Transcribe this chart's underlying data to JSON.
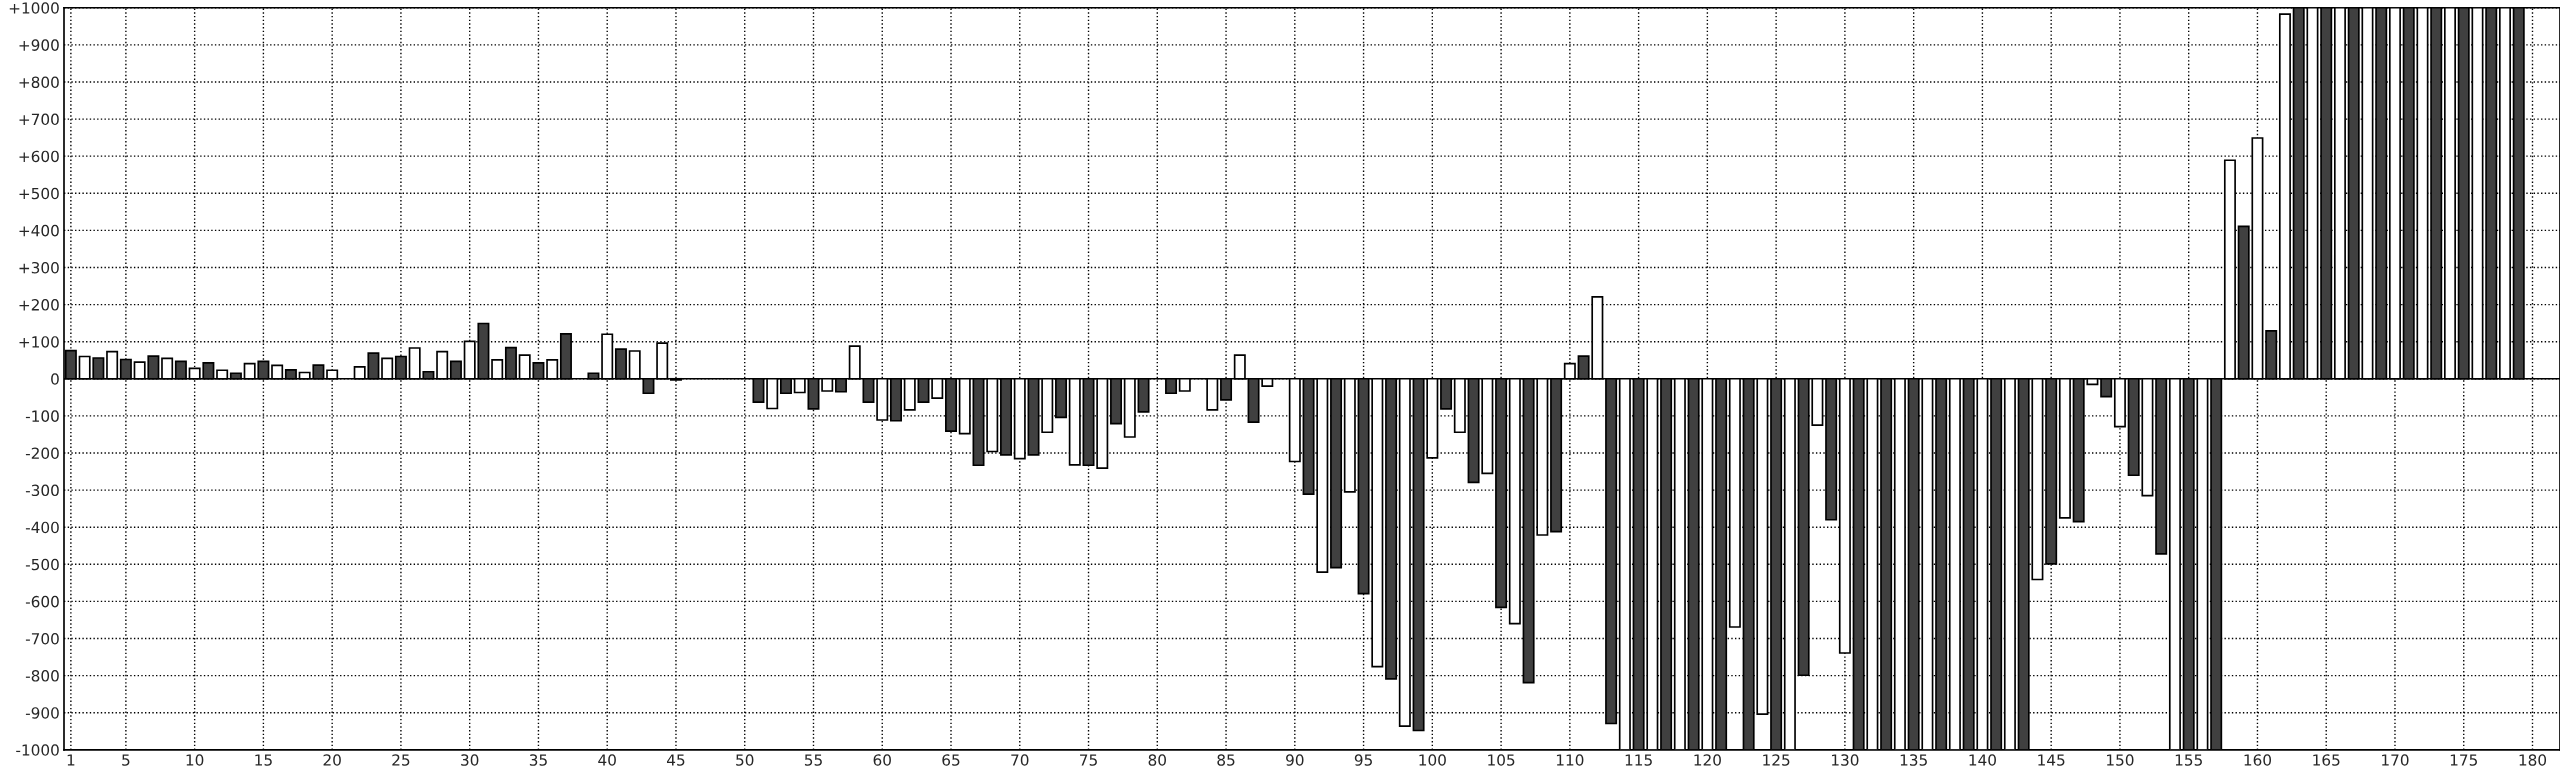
{
  "chart_data": {
    "type": "bar",
    "x": [
      1,
      2,
      3,
      4,
      5,
      6,
      7,
      8,
      9,
      10,
      11,
      12,
      13,
      14,
      15,
      16,
      17,
      18,
      19,
      20,
      21,
      22,
      23,
      24,
      25,
      26,
      27,
      28,
      29,
      30,
      31,
      32,
      33,
      34,
      35,
      36,
      37,
      38,
      39,
      40,
      41,
      42,
      43,
      44,
      45,
      46,
      47,
      48,
      49,
      50,
      51,
      52,
      53,
      54,
      55,
      56,
      57,
      58,
      59,
      60,
      61,
      62,
      63,
      64,
      65,
      66,
      67,
      68,
      69,
      70,
      71,
      72,
      73,
      74,
      75,
      76,
      77,
      78,
      79,
      80,
      81,
      82,
      83,
      84,
      85,
      86,
      87,
      88,
      89,
      90,
      91,
      92,
      93,
      94,
      95,
      96,
      97,
      98,
      99,
      100,
      101,
      102,
      103,
      104,
      105,
      106,
      107,
      108,
      109,
      110,
      111,
      112,
      113,
      114,
      115,
      116,
      117,
      118,
      119,
      120,
      121,
      122,
      123,
      124,
      125,
      126,
      127,
      128,
      129,
      130,
      131,
      132,
      133,
      134,
      135,
      136,
      137,
      138,
      139,
      140,
      141,
      142,
      143,
      144,
      145,
      146,
      147,
      148,
      149,
      150,
      151,
      152,
      153,
      154,
      155,
      156,
      157,
      158,
      159,
      160,
      161,
      162,
      163,
      164,
      165,
      166,
      167,
      168,
      169,
      170,
      171,
      172,
      173,
      174,
      175,
      176,
      177,
      178,
      179,
      180
    ],
    "values": [
      76,
      60,
      56,
      73,
      52,
      45,
      61,
      55,
      47,
      28,
      43,
      23,
      15,
      41,
      47,
      36,
      24,
      17,
      37,
      23,
      0,
      32,
      69,
      55,
      60,
      83,
      19,
      73,
      47,
      101,
      149,
      51,
      84,
      64,
      43,
      51,
      121,
      0,
      15,
      120,
      80,
      75,
      -39,
      96,
      -3,
      0,
      0,
      0,
      0,
      0,
      -63,
      -80,
      -39,
      -37,
      -81,
      -33,
      -35,
      88,
      -63,
      -111,
      -113,
      -84,
      -63,
      -52,
      -141,
      -148,
      -233,
      -196,
      -205,
      -215,
      -205,
      -144,
      -104,
      -232,
      -233,
      -241,
      -121,
      -157,
      -89,
      0,
      -39,
      -33,
      0,
      -84,
      -57,
      64,
      -117,
      -20,
      0,
      -223,
      -311,
      -521,
      -509,
      -305,
      -579,
      -776,
      -809,
      -936,
      -948,
      -213,
      -81,
      -144,
      -279,
      -255,
      -616,
      -660,
      -819,
      -421,
      -412,
      41,
      61,
      221,
      -929,
      -1000,
      -1000,
      -1000,
      -1000,
      -1000,
      -1000,
      -1000,
      -1000,
      -669,
      -1000,
      -904,
      -1000,
      -1000,
      -799,
      -125,
      -380,
      -739,
      -1000,
      -1000,
      -1000,
      -1000,
      -1000,
      -1000,
      -1000,
      -1000,
      -1000,
      -1000,
      -1000,
      -1000,
      -1000,
      -541,
      -499,
      -375,
      -385,
      -15,
      -48,
      -129,
      -260,
      -315,
      -472,
      -1000,
      -1000,
      -1000,
      -1000,
      589,
      411,
      649,
      129,
      983,
      1000,
      1000,
      1000,
      1000,
      1000,
      1000,
      1000,
      1000,
      1000,
      1000,
      1000,
      1000,
      1000,
      1000,
      1000,
      1000,
      1000,
      0
    ],
    "colors": [
      "#404040",
      "#ffffff",
      "#404040",
      "#ffffff",
      "#404040",
      "#ffffff",
      "#404040",
      "#ffffff",
      "#404040",
      "#ffffff",
      "#404040",
      "#ffffff",
      "#404040",
      "#ffffff",
      "#404040",
      "#ffffff",
      "#404040",
      "#ffffff",
      "#404040",
      "#ffffff",
      "#404040",
      "#ffffff",
      "#404040",
      "#ffffff",
      "#404040",
      "#ffffff",
      "#404040",
      "#ffffff",
      "#404040",
      "#ffffff",
      "#404040",
      "#ffffff",
      "#404040",
      "#ffffff",
      "#404040",
      "#ffffff",
      "#404040",
      "#ffffff",
      "#404040",
      "#ffffff",
      "#404040",
      "#ffffff",
      "#404040",
      "#ffffff",
      "#404040",
      "#ffffff",
      "#404040",
      "#ffffff",
      "#404040",
      "#ffffff",
      "#404040",
      "#ffffff",
      "#404040",
      "#ffffff",
      "#404040",
      "#ffffff",
      "#404040",
      "#ffffff",
      "#404040",
      "#ffffff",
      "#404040",
      "#ffffff",
      "#404040",
      "#ffffff",
      "#404040",
      "#ffffff",
      "#404040",
      "#ffffff",
      "#404040",
      "#ffffff",
      "#404040",
      "#ffffff",
      "#404040",
      "#ffffff",
      "#404040",
      "#ffffff",
      "#404040",
      "#ffffff",
      "#404040",
      "#ffffff",
      "#404040",
      "#ffffff",
      "#404040",
      "#ffffff",
      "#404040",
      "#ffffff",
      "#404040",
      "#ffffff",
      "#404040",
      "#ffffff",
      "#404040",
      "#ffffff",
      "#404040",
      "#ffffff",
      "#404040",
      "#ffffff",
      "#404040",
      "#ffffff",
      "#404040",
      "#ffffff",
      "#404040",
      "#ffffff",
      "#404040",
      "#ffffff",
      "#404040",
      "#ffffff",
      "#404040",
      "#ffffff",
      "#404040",
      "#ffffff",
      "#404040",
      "#ffffff",
      "#404040",
      "#ffffff",
      "#404040",
      "#ffffff",
      "#404040",
      "#ffffff",
      "#404040",
      "#ffffff",
      "#404040",
      "#ffffff",
      "#404040",
      "#ffffff",
      "#404040",
      "#ffffff",
      "#404040",
      "#ffffff",
      "#404040",
      "#ffffff",
      "#404040",
      "#ffffff",
      "#404040",
      "#ffffff",
      "#404040",
      "#ffffff",
      "#404040",
      "#ffffff",
      "#404040",
      "#ffffff",
      "#404040",
      "#ffffff",
      "#404040",
      "#ffffff",
      "#404040",
      "#ffffff",
      "#404040",
      "#ffffff",
      "#404040",
      "#ffffff",
      "#404040",
      "#ffffff",
      "#404040",
      "#ffffff",
      "#404040",
      "#ffffff",
      "#404040",
      "#ffffff",
      "#404040",
      "#ffffff",
      "#404040",
      "#ffffff",
      "#404040",
      "#ffffff",
      "#404040",
      "#ffffff",
      "#404040",
      "#ffffff",
      "#404040",
      "#ffffff",
      "#404040",
      "#ffffff",
      "#404040",
      "#ffffff",
      "#404040",
      "#ffffff",
      "#404040",
      "#ffffff",
      "#404040",
      "#ffffff"
    ],
    "xlim": [
      0.5,
      182
    ],
    "xticks": [
      1,
      5,
      10,
      15,
      20,
      25,
      30,
      35,
      40,
      45,
      50,
      55,
      60,
      65,
      70,
      75,
      80,
      85,
      90,
      95,
      100,
      105,
      110,
      115,
      120,
      125,
      130,
      135,
      140,
      145,
      150,
      155,
      160,
      165,
      170,
      175,
      180
    ],
    "ylim": [
      -1000,
      1000
    ],
    "yticks": [
      {
        "value": 1000,
        "label": "+1000"
      },
      {
        "value": 900,
        "label": "+900"
      },
      {
        "value": 800,
        "label": "+800"
      },
      {
        "value": 700,
        "label": "+700"
      },
      {
        "value": 600,
        "label": "+600"
      },
      {
        "value": 500,
        "label": "+500"
      },
      {
        "value": 400,
        "label": "+400"
      },
      {
        "value": 300,
        "label": "+300"
      },
      {
        "value": 200,
        "label": "+200"
      },
      {
        "value": 100,
        "label": "+100"
      },
      0,
      {
        "value": -100,
        "label": "-100"
      },
      {
        "value": -200,
        "label": "-200"
      },
      {
        "value": -300,
        "label": "-300"
      },
      {
        "value": -400,
        "label": "-400"
      },
      {
        "value": -500,
        "label": "-500"
      },
      {
        "value": -600,
        "label": "-600"
      },
      {
        "value": -700,
        "label": "-700"
      },
      {
        "value": -800,
        "label": "-800"
      },
      {
        "value": -900,
        "label": "-900"
      },
      {
        "value": -1000,
        "label": "-1000"
      }
    ],
    "grid": true
  }
}
